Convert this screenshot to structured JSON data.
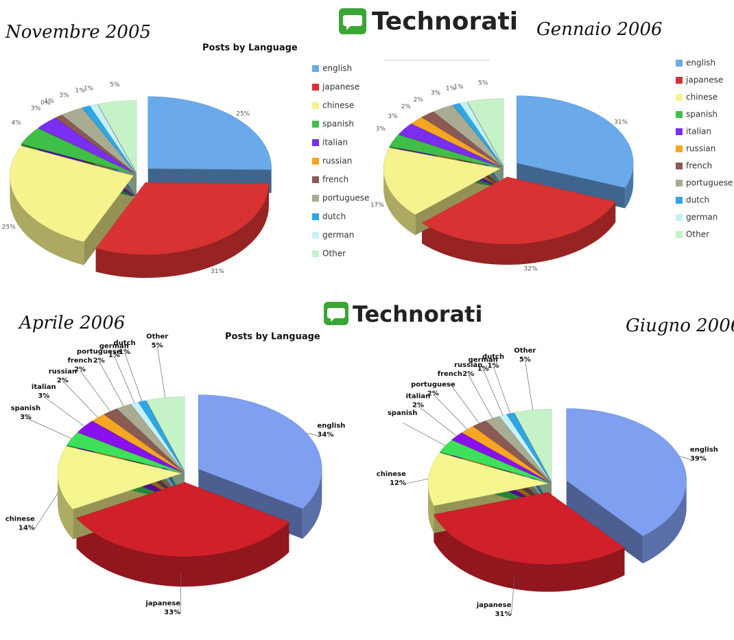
{
  "logos": [
    "Technorati",
    "Technorati"
  ],
  "chart_data": [
    {
      "type": "pie",
      "title": "Novembre 2005",
      "subtitle": "Posts by Language",
      "legend": true,
      "label_names": false,
      "categories": [
        "english",
        "japanese",
        "chinese",
        "spanish",
        "italian",
        "russian",
        "french",
        "portuguese",
        "dutch",
        "german",
        "Other"
      ],
      "values": [
        25,
        31,
        25,
        4,
        3,
        0,
        1,
        3,
        1,
        1,
        5
      ],
      "value_labels": [
        "25%",
        "31%",
        "25%",
        "4%",
        "3%",
        "0%",
        "1%",
        "3%",
        "1%",
        "1%",
        "5%"
      ],
      "colors": [
        "#6aa9ea",
        "#d83232",
        "#f6f28e",
        "#40bf48",
        "#7a2ef0",
        "#f5a623",
        "#8b5a52",
        "#a9ac92",
        "#2aa8e8",
        "#c8f0f8",
        "#c6f2c8"
      ]
    },
    {
      "type": "pie",
      "title": "Gennaio 2006",
      "legend": true,
      "label_names": false,
      "categories": [
        "english",
        "japanese",
        "chinese",
        "spanish",
        "italian",
        "russian",
        "french",
        "portuguese",
        "dutch",
        "german",
        "Other"
      ],
      "values": [
        31,
        32,
        17,
        3,
        3,
        2,
        2,
        3,
        1,
        1,
        5
      ],
      "value_labels": [
        "31%",
        "32%",
        "17%",
        "3%",
        "3%",
        "2%",
        "2%",
        "3%",
        "1%",
        "1%",
        "5%"
      ],
      "colors": [
        "#6aa9ea",
        "#d83232",
        "#f6f28e",
        "#40bf48",
        "#7a2ef0",
        "#f5a623",
        "#8b5a52",
        "#a9ac92",
        "#2aa8e8",
        "#c8f0f8",
        "#c6f2c8"
      ]
    },
    {
      "type": "pie",
      "title": "Aprile 2006",
      "subtitle": "Posts by Language",
      "legend": false,
      "label_names": true,
      "categories": [
        "english",
        "japanese",
        "chinese",
        "spanish",
        "italian",
        "russian",
        "french",
        "portuguese",
        "german",
        "dutch",
        "Other"
      ],
      "values": [
        34,
        33,
        14,
        3,
        3,
        2,
        2,
        2,
        1,
        1,
        5
      ],
      "value_labels": [
        "34%",
        "33%",
        "14%",
        "3%",
        "3%",
        "2%",
        "2%",
        "2%",
        "1%",
        "1%",
        "5%"
      ],
      "colors": [
        "#7f9ff0",
        "#d0202a",
        "#f6f690",
        "#3ee05a",
        "#8a10f0",
        "#f5a623",
        "#8b5a52",
        "#a9ac92",
        "#c8f0f8",
        "#2aa8e8",
        "#c6f2c8"
      ]
    },
    {
      "type": "pie",
      "title": "Giugno 2006",
      "legend": false,
      "label_names": true,
      "categories": [
        "english",
        "japanese",
        "chinese",
        "spanish",
        "italian",
        "portuguese",
        "french",
        "russian",
        "german",
        "dutch",
        "Other"
      ],
      "values": [
        39,
        31,
        12,
        3,
        2,
        2,
        2,
        2,
        1,
        1,
        5
      ],
      "value_labels": [
        "39%",
        "31%",
        "12%",
        null,
        "2%",
        "2%",
        null,
        "2%",
        "1%",
        "1%",
        "5%"
      ],
      "colors": [
        "#7f9ff0",
        "#d0202a",
        "#f6f690",
        "#3ee05a",
        "#8a10f0",
        "#f5a623",
        "#8b5a52",
        "#a9ac92",
        "#c8f0f8",
        "#2aa8e8",
        "#c6f2c8"
      ]
    }
  ]
}
